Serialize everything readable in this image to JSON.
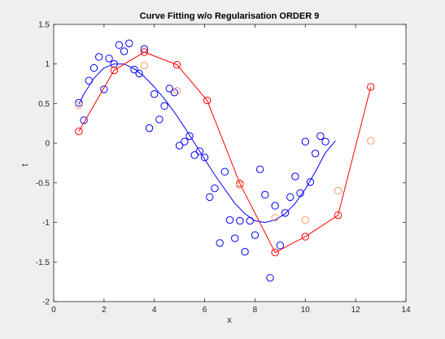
{
  "figure": {
    "background": "#efefef"
  },
  "chart_data": {
    "type": "scatter",
    "title": "Curve Fitting w/o Regularisation ORDER 9",
    "xlabel": "x",
    "ylabel": "t",
    "xlim": [
      0,
      14
    ],
    "ylim": [
      -2,
      1.5
    ],
    "xticks": [
      "0",
      "2",
      "4",
      "6",
      "8",
      "10",
      "12",
      "14"
    ],
    "yticks": [
      "-2",
      "-1.5",
      "-1",
      "-0.5",
      "0",
      "0.5",
      "1",
      "1.5"
    ],
    "grid": false,
    "legend": "none",
    "series": [
      {
        "type": "scatter",
        "color": "#0000ff",
        "marker": "open-circle",
        "points": [
          [
            1.0,
            0.51
          ],
          [
            1.2,
            0.29
          ],
          [
            1.4,
            0.79
          ],
          [
            1.6,
            0.95
          ],
          [
            1.8,
            1.09
          ],
          [
            2.0,
            0.68
          ],
          [
            2.2,
            1.07
          ],
          [
            2.4,
            1.0
          ],
          [
            2.6,
            1.24
          ],
          [
            2.8,
            1.16
          ],
          [
            3.0,
            1.26
          ],
          [
            3.2,
            0.93
          ],
          [
            3.4,
            0.88
          ],
          [
            3.6,
            1.19
          ],
          [
            3.8,
            0.19
          ],
          [
            4.0,
            0.62
          ],
          [
            4.2,
            0.3
          ],
          [
            4.4,
            0.47
          ],
          [
            4.6,
            0.69
          ],
          [
            4.8,
            0.64
          ],
          [
            5.0,
            -0.03
          ],
          [
            5.2,
            0.02
          ],
          [
            5.4,
            0.09
          ],
          [
            5.6,
            -0.15
          ],
          [
            5.8,
            -0.1
          ],
          [
            6.0,
            -0.18
          ],
          [
            6.2,
            -0.68
          ],
          [
            6.4,
            -0.57
          ],
          [
            6.6,
            -1.26
          ],
          [
            6.8,
            -0.36
          ],
          [
            7.0,
            -0.97
          ],
          [
            7.2,
            -1.2
          ],
          [
            7.4,
            -0.98
          ],
          [
            7.6,
            -1.37
          ],
          [
            7.8,
            -0.98
          ],
          [
            8.0,
            -1.16
          ],
          [
            8.2,
            -0.33
          ],
          [
            8.4,
            -0.65
          ],
          [
            8.6,
            -1.7
          ],
          [
            8.8,
            -0.79
          ],
          [
            9.0,
            -1.29
          ],
          [
            9.2,
            -0.88
          ],
          [
            9.4,
            -0.68
          ],
          [
            9.6,
            -0.42
          ],
          [
            9.8,
            -0.63
          ],
          [
            10.0,
            0.02
          ],
          [
            10.2,
            -0.49
          ],
          [
            10.4,
            -0.13
          ],
          [
            10.6,
            0.09
          ],
          [
            10.8,
            0.02
          ]
        ]
      },
      {
        "type": "line",
        "color": "#0000ff",
        "points": [
          [
            1.0,
            0.49
          ],
          [
            1.2,
            0.62
          ],
          [
            1.6,
            0.82
          ],
          [
            2.0,
            0.95
          ],
          [
            2.4,
            1.0
          ],
          [
            2.8,
            1.0
          ],
          [
            3.2,
            0.94
          ],
          [
            3.6,
            0.84
          ],
          [
            4.0,
            0.71
          ],
          [
            4.4,
            0.56
          ],
          [
            4.8,
            0.39
          ],
          [
            5.2,
            0.2
          ],
          [
            5.6,
            0.0
          ],
          [
            6.0,
            -0.2
          ],
          [
            6.4,
            -0.4
          ],
          [
            6.8,
            -0.58
          ],
          [
            7.2,
            -0.76
          ],
          [
            7.6,
            -0.89
          ],
          [
            8.0,
            -0.98
          ],
          [
            8.4,
            -1.0
          ],
          [
            8.8,
            -0.97
          ],
          [
            9.2,
            -0.89
          ],
          [
            9.6,
            -0.76
          ],
          [
            10.0,
            -0.58
          ],
          [
            10.4,
            -0.36
          ],
          [
            10.8,
            -0.12
          ],
          [
            11.2,
            0.03
          ]
        ]
      },
      {
        "type": "line",
        "color": "#ff0000",
        "marker": "open-circle",
        "points": [
          [
            1.0,
            0.15
          ],
          [
            2.4,
            0.92
          ],
          [
            3.6,
            1.15
          ],
          [
            4.9,
            0.99
          ],
          [
            6.1,
            0.54
          ],
          [
            7.4,
            -0.51
          ],
          [
            8.8,
            -1.38
          ],
          [
            10.0,
            -1.18
          ],
          [
            11.3,
            -0.91
          ],
          [
            12.6,
            0.71
          ]
        ]
      },
      {
        "type": "scatter",
        "color": "#ff9966",
        "marker": "open-circle",
        "points": [
          [
            1.0,
            0.48
          ],
          [
            3.6,
            0.98
          ],
          [
            4.9,
            0.66
          ],
          [
            7.4,
            -0.53
          ],
          [
            8.8,
            -0.94
          ],
          [
            10.0,
            -0.97
          ],
          [
            11.3,
            -0.6
          ],
          [
            12.6,
            0.03
          ]
        ]
      }
    ]
  }
}
